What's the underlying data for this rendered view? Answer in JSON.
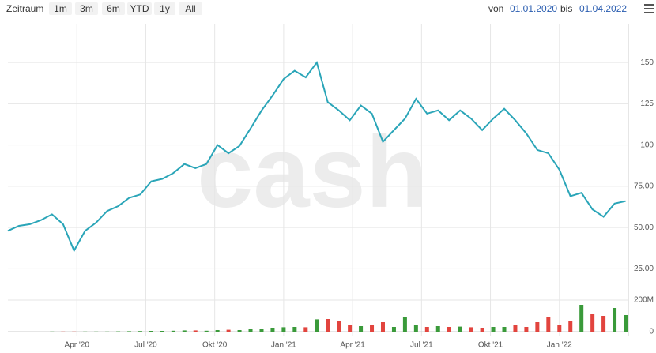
{
  "toolbar": {
    "label": "Zeitraum",
    "buttons": [
      "1m",
      "3m",
      "6m",
      "YTD",
      "1y",
      "All"
    ],
    "from_label": "von",
    "from_date": "01.01.2020",
    "to_label": "bis",
    "to_date": "01.04.2022"
  },
  "chart_data": {
    "type": "line",
    "watermark": "cash",
    "color": "#2aa5b8",
    "grid": true,
    "x": [
      2020.0,
      2020.04,
      2020.08,
      2020.12,
      2020.16,
      2020.2,
      2020.24,
      2020.28,
      2020.32,
      2020.36,
      2020.4,
      2020.44,
      2020.48,
      2020.52,
      2020.56,
      2020.6,
      2020.64,
      2020.68,
      2020.72,
      2020.76,
      2020.8,
      2020.84,
      2020.88,
      2020.92,
      2020.96,
      2021.0,
      2021.04,
      2021.08,
      2021.12,
      2021.16,
      2021.2,
      2021.24,
      2021.28,
      2021.32,
      2021.36,
      2021.4,
      2021.44,
      2021.48,
      2021.52,
      2021.56,
      2021.6,
      2021.64,
      2021.68,
      2021.72,
      2021.76,
      2021.8,
      2021.84,
      2021.88,
      2021.92,
      2021.96,
      2022.0,
      2022.04,
      2022.08,
      2022.12,
      2022.16,
      2022.2,
      2022.24
    ],
    "values": [
      48,
      51,
      52,
      54.5,
      58,
      52,
      36,
      48,
      53,
      60,
      63,
      68,
      70,
      78,
      79.5,
      83,
      88.5,
      86,
      88.5,
      100,
      95,
      99.5,
      110,
      121,
      130,
      140,
      145,
      141,
      150,
      126,
      121,
      115,
      124,
      119,
      102,
      109,
      116,
      128,
      119,
      121,
      115,
      121,
      116,
      109,
      116,
      122,
      115,
      107,
      97,
      95,
      85,
      69,
      71,
      61,
      56.5,
      64.5,
      66
    ],
    "xlim": [
      2020,
      2022.25
    ],
    "xticks": [
      {
        "value": 2020.25,
        "label": "Apr '20"
      },
      {
        "value": 2020.5,
        "label": "Jul '20"
      },
      {
        "value": 2020.75,
        "label": "Okt '20"
      },
      {
        "value": 2021,
        "label": "Jan '21"
      },
      {
        "value": 2021.25,
        "label": "Apr '21"
      },
      {
        "value": 2021.5,
        "label": "Jul '21"
      },
      {
        "value": 2021.75,
        "label": "Okt '21"
      },
      {
        "value": 2022,
        "label": "Jan '22"
      }
    ],
    "ylim": [
      18,
      174
    ],
    "yticks": [
      {
        "value": 25,
        "label": "25.00"
      },
      {
        "value": 50,
        "label": "50.00"
      },
      {
        "value": 75,
        "label": "75.00"
      },
      100,
      125,
      150
    ],
    "volume": {
      "up_color": "#3a9a3a",
      "down_color": "#e2443e",
      "values": [
        0,
        0,
        0,
        0,
        1,
        1,
        1,
        1,
        1,
        1,
        2,
        3,
        4,
        5,
        5,
        6,
        8,
        8,
        6,
        10,
        12,
        10,
        15,
        20,
        25,
        28,
        30,
        28,
        78,
        80,
        70,
        45,
        35,
        40,
        60,
        30,
        90,
        45,
        30,
        35,
        30,
        32,
        28,
        25,
        30,
        30,
        45,
        30,
        60,
        95,
        40,
        70,
        170,
        110,
        100,
        150,
        105
      ],
      "ylim": [
        0,
        275
      ],
      "yticks": [
        0,
        {
          "value": 200,
          "label": "200M"
        }
      ]
    }
  }
}
